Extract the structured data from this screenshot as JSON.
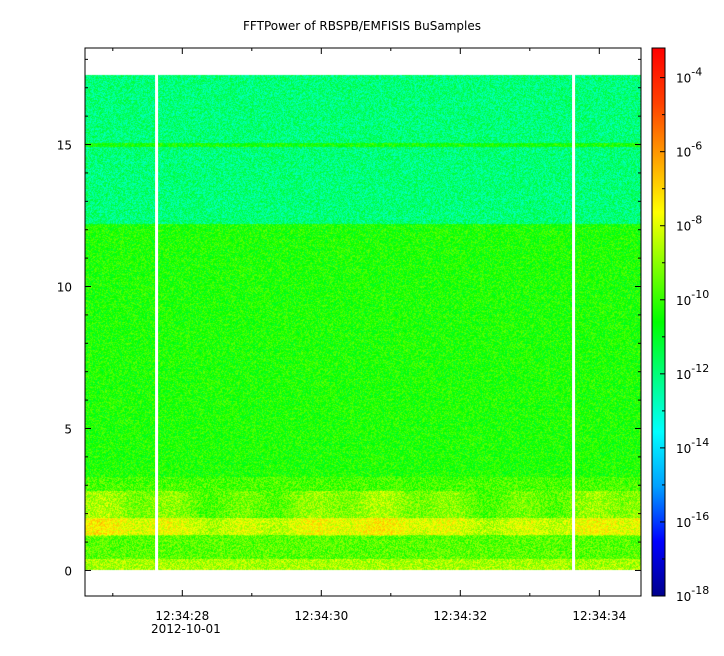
{
  "chart_data": {
    "type": "heatmap",
    "title": "FFTPower of RBSPB/EMFISIS  BuSamples",
    "xlabel": "",
    "ylabel": "",
    "x_tick_labels": [
      "12:34:28",
      "12:34:30",
      "12:34:32",
      "12:34:34"
    ],
    "x_date_label": "2012-10-01",
    "x_major_ticks_sec": [
      28,
      30,
      32,
      34
    ],
    "x_minor_ticks_sec": [
      27,
      29,
      31,
      33
    ],
    "xlim_sec": [
      26.6,
      34.6
    ],
    "y_ticks": [
      0,
      5,
      10,
      15
    ],
    "ylim": [
      -0.9,
      18.4
    ],
    "data_extent": {
      "x_sec": [
        26.6,
        34.6
      ],
      "y": [
        0.05,
        17.45
      ]
    },
    "gaps_sec": [
      27.63,
      33.63
    ],
    "colorbar": {
      "scale": "log",
      "tick_labels": [
        {
          "base": "10",
          "exp": "-4"
        },
        {
          "base": "10",
          "exp": "-6"
        },
        {
          "base": "10",
          "exp": "-8"
        },
        {
          "base": "10",
          "exp": "-10"
        },
        {
          "base": "10",
          "exp": "-12"
        },
        {
          "base": "10",
          "exp": "-14"
        },
        {
          "base": "10",
          "exp": "-16"
        },
        {
          "base": "10",
          "exp": "-18"
        }
      ],
      "log_range": [
        -18,
        -3.2
      ],
      "stops": [
        "#00008c",
        "#0000ff",
        "#00a0ff",
        "#00ffff",
        "#00ff80",
        "#00ff00",
        "#80ff00",
        "#ffff00",
        "#ffa000",
        "#ff4000",
        "#ff0000"
      ]
    },
    "bands": [
      {
        "y": [
          12.2,
          17.45
        ],
        "level": -12.0,
        "description_color": "#20e878"
      },
      {
        "y": [
          2.8,
          12.2
        ],
        "level": -10.3,
        "description_color": "#50e040"
      },
      {
        "y": [
          1.2,
          2.2
        ],
        "level": -8.0,
        "description_color": "#ff8c00"
      },
      {
        "y": [
          0.05,
          0.4
        ],
        "level": -8.7,
        "description_color": "#f0e000"
      }
    ],
    "line_15": {
      "y": 15.0,
      "level": -10.5
    }
  }
}
